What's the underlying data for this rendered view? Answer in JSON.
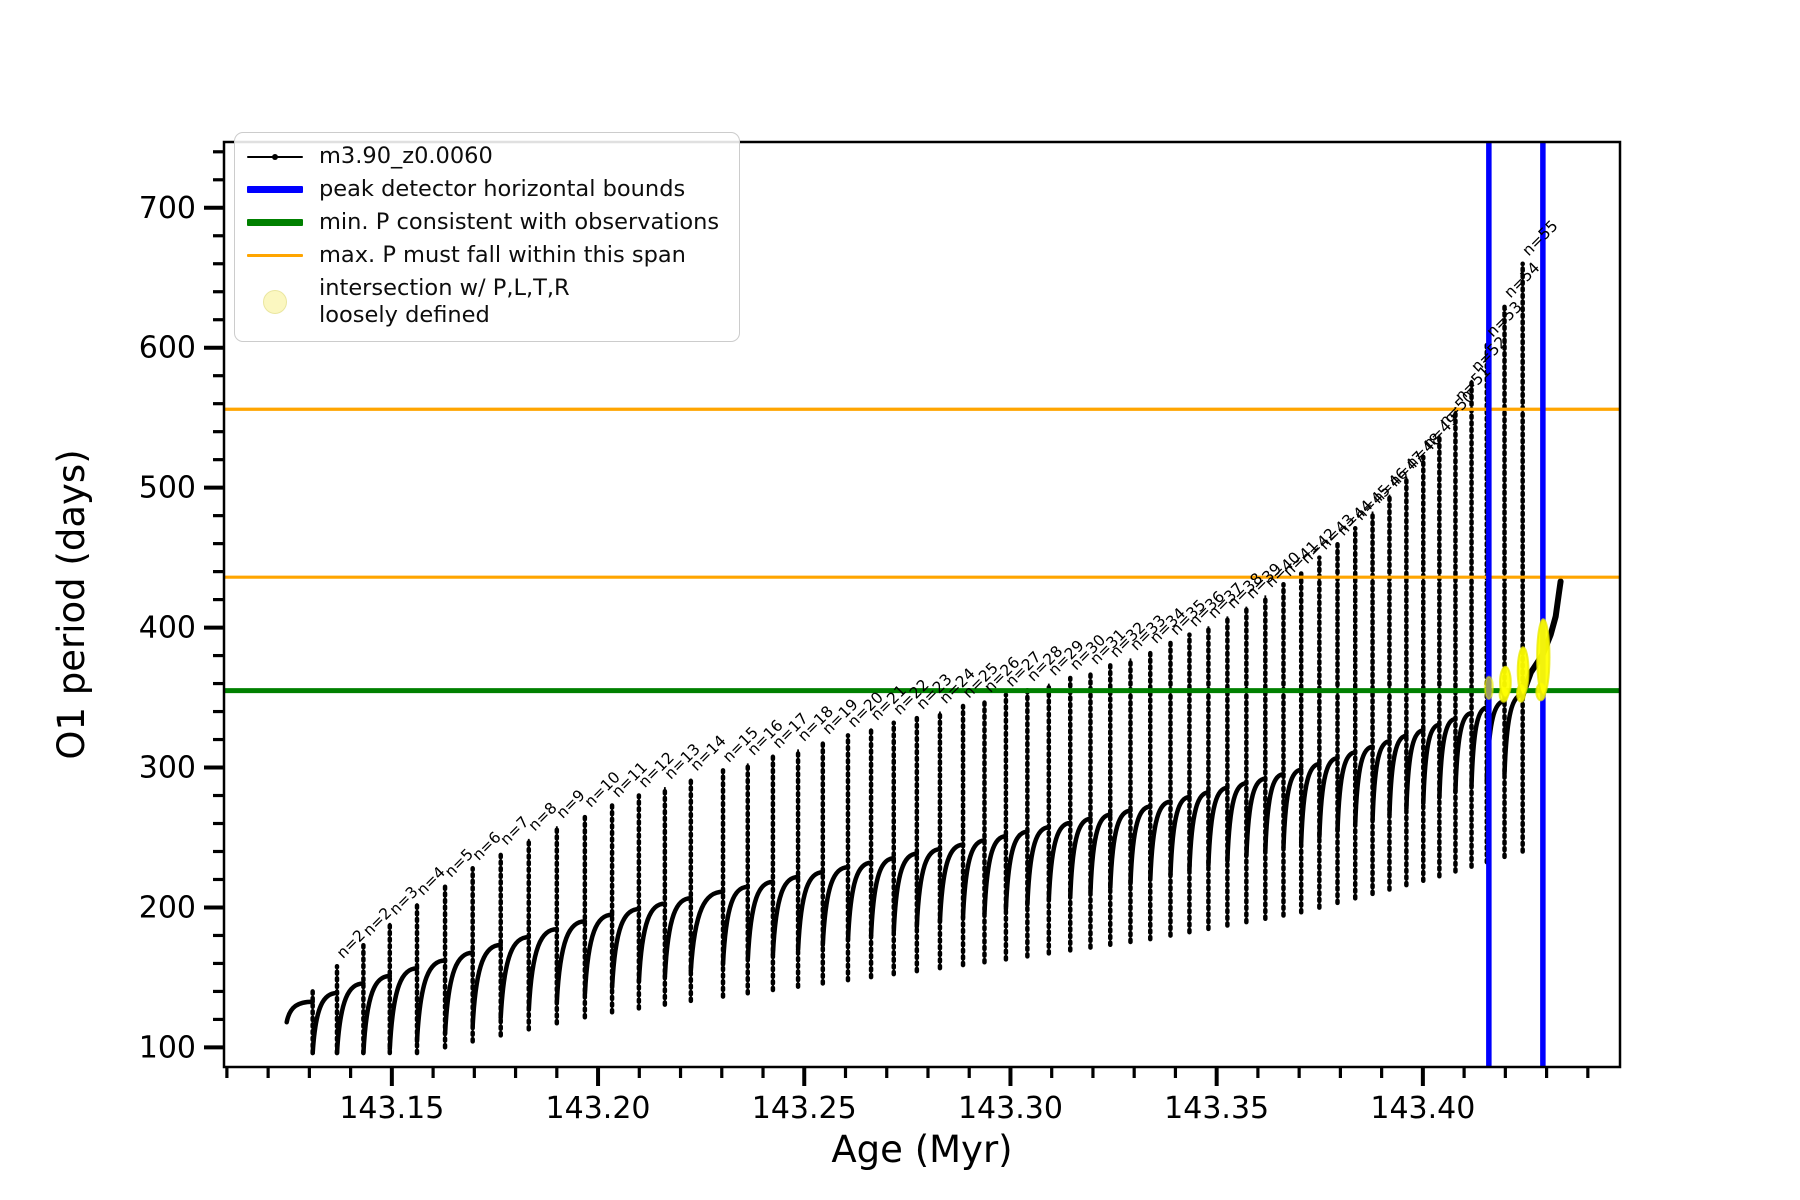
{
  "figure": {
    "background": "#ffffff"
  },
  "legend": {
    "items": [
      {
        "label": "m3.90_z0.0060",
        "color": "#000000",
        "style": "line-marker",
        "lw": 2
      },
      {
        "label": "peak detector horizontal bounds",
        "color": "#0000ff",
        "style": "line",
        "lw": 7
      },
      {
        "label": "min. P consistent with observations",
        "color": "#008000",
        "style": "line",
        "lw": 7
      },
      {
        "label": "max. P must fall within this span",
        "color": "#ffa500",
        "style": "line",
        "lw": 3.5
      },
      {
        "label": "intersection w/ P,L,T,R\nloosely defined",
        "color": "#fbf7c0",
        "edge": "#eae6a0",
        "style": "marker"
      }
    ]
  },
  "chart_data": {
    "type": "line",
    "title": "",
    "xlabel": "Age (Myr)",
    "ylabel": "O1 period (days)",
    "xlim": [
      143.1093,
      143.4478
    ],
    "ylim": [
      86,
      747
    ],
    "x_ticks": [
      143.15,
      143.2,
      143.25,
      143.3,
      143.35,
      143.4
    ],
    "x_tick_labels": [
      "143.15",
      "143.20",
      "143.25",
      "143.30",
      "143.35",
      "143.40"
    ],
    "x_minor_step": 0.01,
    "y_ticks": [
      100,
      200,
      300,
      400,
      500,
      600,
      700
    ],
    "y_tick_labels": [
      "100",
      "200",
      "300",
      "400",
      "500",
      "600",
      "700"
    ],
    "y_minor_step": 20,
    "grid": false,
    "legend_position": "upper-left",
    "series": [
      {
        "name": "m3.90_z0.0060",
        "color": "#000000",
        "lead_in": [
          143.1245,
          118
        ],
        "envelope_top": [
          [
            143.1245,
            126
          ],
          [
            143.1434,
            146
          ],
          [
            143.2004,
            193
          ],
          [
            143.2247,
            208
          ],
          [
            143.2489,
            222
          ],
          [
            143.2974,
            250
          ],
          [
            143.3338,
            272
          ],
          [
            143.3702,
            298
          ],
          [
            143.4017,
            328
          ],
          [
            143.4242,
            352
          ]
        ],
        "dip_offset": 52,
        "cycles": [
          [
            "",
            143.1308,
            140
          ],
          [
            "n=2",
            143.1367,
            158
          ],
          [
            "n=2",
            143.1431,
            174
          ],
          [
            "n=3",
            143.1495,
            189
          ],
          [
            "n=4",
            143.1561,
            203
          ],
          [
            "n=5",
            143.1629,
            216
          ],
          [
            "n=6",
            143.1696,
            228
          ],
          [
            "n=7",
            143.1764,
            239
          ],
          [
            "n=8",
            143.1832,
            249
          ],
          [
            "n=9",
            143.19,
            258
          ],
          [
            "n=10",
            143.1968,
            266
          ],
          [
            "n=11",
            143.2034,
            273
          ],
          [
            "n=12",
            143.2099,
            280
          ],
          [
            "n=13",
            143.2162,
            286
          ],
          [
            "n=14",
            143.2225,
            292
          ],
          [
            "n=15",
            143.2303,
            298
          ],
          [
            "n=16",
            143.2363,
            303
          ],
          [
            "n=17",
            143.2424,
            308
          ],
          [
            "n=18",
            143.2485,
            313
          ],
          [
            "n=19",
            143.2545,
            318
          ],
          [
            "n=20",
            143.2606,
            323
          ],
          [
            "n=21",
            143.2662,
            328
          ],
          [
            "n=22",
            143.2717,
            332
          ],
          [
            "n=23",
            143.2773,
            336
          ],
          [
            "n=24",
            143.2829,
            340
          ],
          [
            "n=25",
            143.2885,
            344
          ],
          [
            "n=26",
            143.2937,
            348
          ],
          [
            "n=27",
            143.2989,
            352
          ],
          [
            "n=28",
            143.3041,
            356
          ],
          [
            "n=29",
            143.3093,
            360
          ],
          [
            "n=30",
            143.3145,
            364
          ],
          [
            "n=31",
            143.3194,
            368
          ],
          [
            "n=32",
            143.3242,
            373
          ],
          [
            "n=33",
            143.3291,
            378
          ],
          [
            "n=34",
            143.3339,
            383
          ],
          [
            "n=35",
            143.3388,
            389
          ],
          [
            "n=36",
            143.3434,
            395
          ],
          [
            "n=37",
            143.348,
            401
          ],
          [
            "n=38",
            143.3526,
            408
          ],
          [
            "n=39",
            143.3572,
            415
          ],
          [
            "n=40",
            143.3618,
            423
          ],
          [
            "n=41",
            143.3662,
            431
          ],
          [
            "n=42",
            143.3705,
            440
          ],
          [
            "n=43",
            143.3749,
            450
          ],
          [
            "n=44",
            143.3793,
            460
          ],
          [
            "n=45",
            143.3836,
            471
          ],
          [
            "n=46",
            143.3878,
            483
          ],
          [
            "n=47",
            143.3919,
            495
          ],
          [
            "n=48",
            143.396,
            508
          ],
          [
            "n=49",
            143.4001,
            522
          ],
          [
            "n=50",
            143.404,
            538
          ],
          [
            "n=51",
            143.4079,
            556
          ],
          [
            "n=52",
            143.4118,
            577
          ],
          [
            "n=53",
            143.4155,
            602
          ],
          [
            "n=54",
            143.4198,
            630
          ],
          [
            "n=55",
            143.4242,
            660
          ]
        ],
        "tail": [
          [
            143.4242,
            352
          ],
          [
            143.4262,
            368
          ],
          [
            143.4291,
            381
          ],
          [
            143.431,
            395
          ],
          [
            143.4322,
            408
          ],
          [
            143.433,
            425
          ],
          [
            143.4334,
            433
          ]
        ]
      }
    ],
    "hlines": [
      {
        "role": "min-P-consistent",
        "y": 355,
        "color": "#008000",
        "lw": 5
      },
      {
        "role": "max-P-span-lower",
        "y": 436,
        "color": "#ffa500",
        "lw": 3.2
      },
      {
        "role": "max-P-span-upper",
        "y": 556,
        "color": "#ffa500",
        "lw": 3.2
      }
    ],
    "vlines": [
      {
        "role": "peak-detector-left-bound",
        "x": 143.416,
        "color": "#0000ff",
        "lw": 5.5
      },
      {
        "role": "peak-detector-right-bound",
        "x": 143.4291,
        "color": "#0000ff",
        "lw": 5.5
      }
    ],
    "markers": {
      "name": "intersection w/ P,L,T,R loosely defined",
      "color": "#ffff00",
      "edge": "#e8e800",
      "points": [
        [
          143.416,
          357,
          0.001,
          8,
          0.6
        ],
        [
          143.4196,
          352,
          0.001,
          5,
          0.9
        ],
        [
          143.42,
          361,
          0.0013,
          11,
          0.95
        ],
        [
          143.4238,
          353,
          0.001,
          6,
          0.9
        ],
        [
          143.4243,
          369,
          0.0013,
          17,
          0.95
        ],
        [
          143.4286,
          354,
          0.0011,
          6,
          0.9
        ],
        [
          143.4292,
          379,
          0.0015,
          27,
          0.95
        ]
      ]
    }
  }
}
